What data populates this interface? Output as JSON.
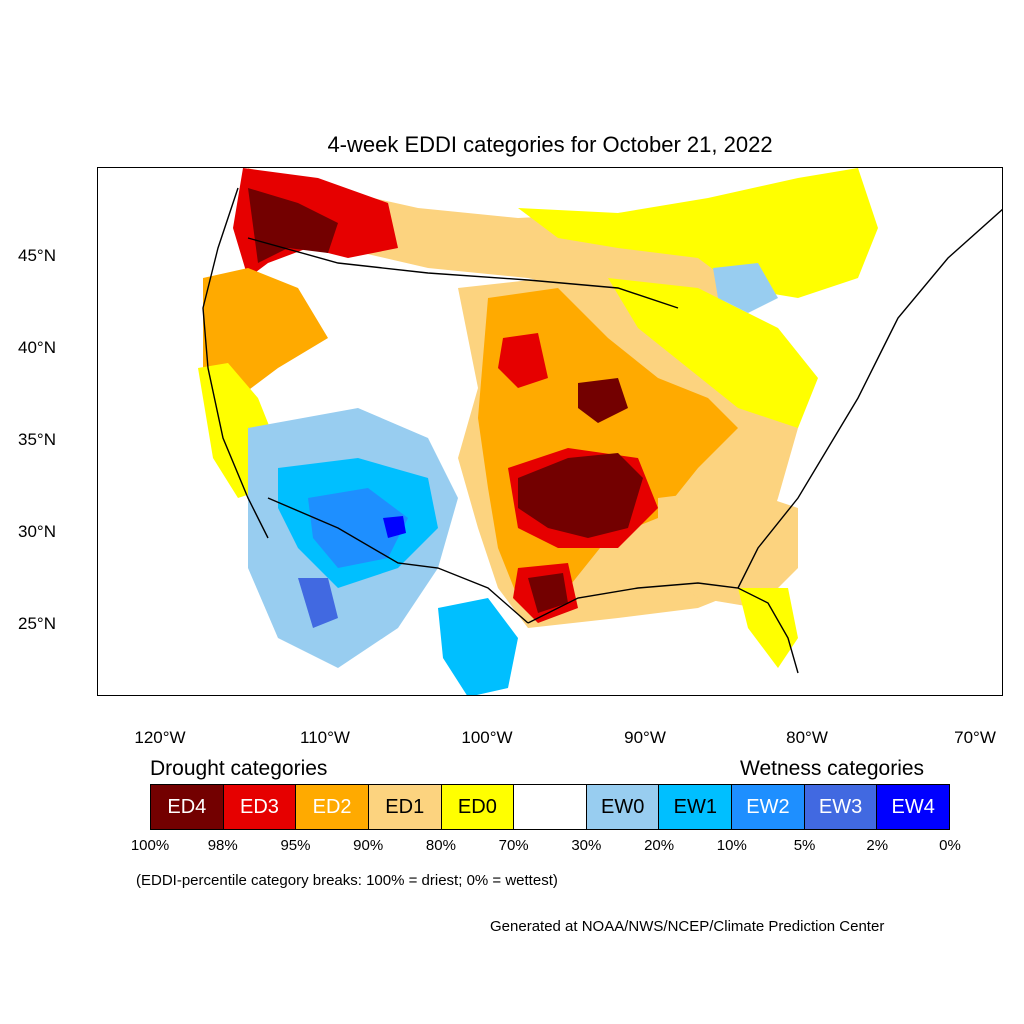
{
  "title": "4-week EDDI categories for October 21, 2022",
  "latitude_labels": [
    "45°N",
    "40°N",
    "35°N",
    "30°N",
    "25°N"
  ],
  "longitude_labels": [
    "120°W",
    "110°W",
    "100°W",
    "90°W",
    "80°W",
    "70°W"
  ],
  "legend": {
    "drought_heading": "Drought categories",
    "wetness_heading": "Wetness categories",
    "categories": [
      {
        "label": "ED4",
        "color": "#730000",
        "text_color": "#ffffff"
      },
      {
        "label": "ED3",
        "color": "#e60000",
        "text_color": "#ffffff"
      },
      {
        "label": "ED2",
        "color": "#ffaa00",
        "text_color": "#ffffff"
      },
      {
        "label": "ED1",
        "color": "#fcd37f",
        "text_color": "#000000"
      },
      {
        "label": "ED0",
        "color": "#ffff00",
        "text_color": "#000000"
      },
      {
        "label": "",
        "color": "#ffffff",
        "text_color": "#000000"
      },
      {
        "label": "EW0",
        "color": "#98cdf0",
        "text_color": "#000000"
      },
      {
        "label": "EW1",
        "color": "#00bfff",
        "text_color": "#000000"
      },
      {
        "label": "EW2",
        "color": "#1e8fff",
        "text_color": "#ffffff"
      },
      {
        "label": "EW3",
        "color": "#4169e1",
        "text_color": "#ffffff"
      },
      {
        "label": "EW4",
        "color": "#0000ff",
        "text_color": "#ffffff"
      }
    ],
    "breaks": [
      "100%",
      "98%",
      "95%",
      "90%",
      "80%",
      "70%",
      "30%",
      "20%",
      "10%",
      "5%",
      "2%",
      "0%"
    ]
  },
  "breaks_note": "(EDDI-percentile category breaks: 100% = driest; 0% = wettest)",
  "credit": "Generated at NOAA/NWS/NCEP/Climate Prediction Center"
}
